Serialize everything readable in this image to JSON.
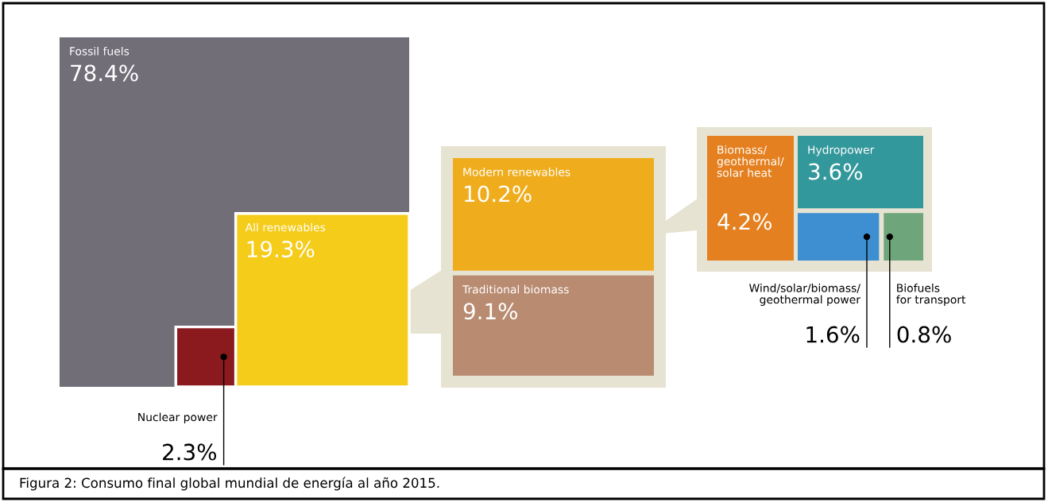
{
  "chart_data": {
    "type": "other",
    "categories": [
      "Fossil fuels",
      "Nuclear power",
      "All renewables",
      "Modern renewables",
      "Traditional biomass",
      "Biomass/\ngeothermal/\nsolar heat",
      "Hydropower",
      "Wind/solar/biomass/\ngeothermal power",
      "Biofuels\nfor transport"
    ],
    "values": [
      78.4,
      2.3,
      19.3,
      10.2,
      9.1,
      4.2,
      3.6,
      1.6,
      0.8
    ],
    "value_labels": [
      "78.4%",
      "2.3%",
      "19.3%",
      "10.2%",
      "9.1%",
      "4.2%",
      "3.6%",
      "1.6%",
      "0.8%"
    ],
    "colors": [
      "#726e78",
      "#8b1a1f",
      "#f5cc1a",
      "#efad1e",
      "#b98b71",
      "#e4801f",
      "#33989b",
      "#3d8fd1",
      "#6ea57a"
    ],
    "annotations": [
      "Figura 2: Consumo final global mundial de energía al año 2015."
    ]
  }
}
